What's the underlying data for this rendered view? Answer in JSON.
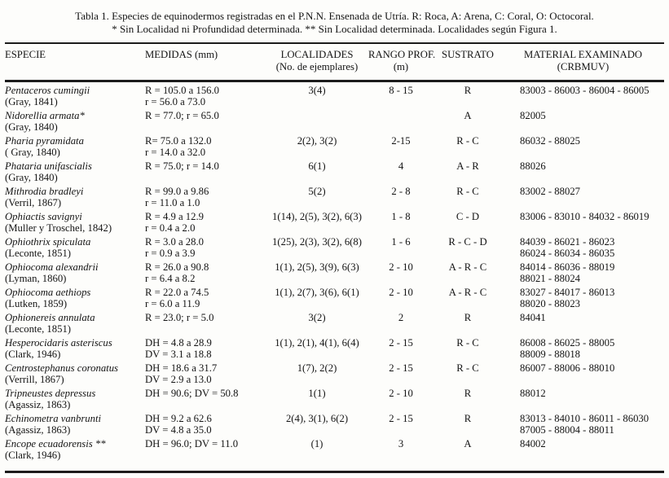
{
  "colors": {
    "paper": "#fdfdfb",
    "ink": "#141414",
    "rule": "#1c1c1c"
  },
  "caption": {
    "line1": "Tabla 1.  Especies de equinodermos registradas en el P.N.N.  Ensenada de Utría.  R:  Roca, A: Arena, C: Coral, O: Octocoral.",
    "line2": "* Sin Localidad ni Profundidad determinada.  ** Sin Localidad determinada.  Localidades según Figura 1."
  },
  "table": {
    "columns": [
      {
        "key": "especie",
        "line1": "ESPECIE",
        "line2": ""
      },
      {
        "key": "medidas",
        "line1": "MEDIDAS (mm)",
        "line2": ""
      },
      {
        "key": "localidades",
        "line1": "LOCALIDADES",
        "line2": "(No. de ejemplares)"
      },
      {
        "key": "rango",
        "line1": "RANGO PROF.",
        "line2": "(m)"
      },
      {
        "key": "sustrato",
        "line1": "SUSTRATO",
        "line2": ""
      },
      {
        "key": "material",
        "line1": "MATERIAL EXAMINADO",
        "line2": "(CRBMUV)"
      }
    ],
    "rows": [
      {
        "species": "Pentaceros cumingii",
        "authority": "(Gray, 1841)",
        "medidas": [
          "R = 105.0 a 156.0",
          "r = 56.0 a 73.0"
        ],
        "localidades": "3(4)",
        "rango": "8 - 15",
        "sustrato": "R",
        "material": [
          "83003 - 86003 - 86004 - 86005"
        ]
      },
      {
        "species": "Nidorellia armata*",
        "authority": "(Gray, 1840)",
        "medidas": [
          "R = 77.0; r = 65.0"
        ],
        "localidades": "",
        "rango": "",
        "sustrato": "A",
        "material": [
          "82005"
        ]
      },
      {
        "species": "Pharia pyramidata",
        "authority": "( Gray, 1840)",
        "medidas": [
          "R= 75.0 a 132.0",
          "r = 14.0 a 32.0"
        ],
        "localidades": "2(2), 3(2)",
        "rango": "2-15",
        "sustrato": "R - C",
        "material": [
          "86032 - 88025"
        ]
      },
      {
        "species": "Phataria unifascialis",
        "authority": "(Gray, 1840)",
        "medidas": [
          "R = 75.0; r = 14.0"
        ],
        "localidades": "6(1)",
        "rango": "4",
        "sustrato": "A - R",
        "material": [
          "88026"
        ]
      },
      {
        "species": "Mithrodia bradleyi",
        "authority": "(Verril, 1867)",
        "medidas": [
          "R = 99.0  a 9.86",
          "r =  11.0  a 1.0"
        ],
        "localidades": "5(2)",
        "rango": "2 - 8",
        "sustrato": "R - C",
        "material": [
          "83002 - 88027"
        ]
      },
      {
        "species": "Ophiactis savignyi",
        "authority": "(Muller y Troschel, 1842)",
        "medidas": [
          "R = 4.9 a 12.9",
          "r =  0.4 a 2.0"
        ],
        "localidades": "1(14), 2(5), 3(2), 6(3)",
        "rango": "1 - 8",
        "sustrato": "C - D",
        "material": [
          "83006 - 83010 - 84032 - 86019"
        ]
      },
      {
        "species": "Ophiothrix spiculata",
        "authority": "(Leconte, 1851)",
        "medidas": [
          "R = 3.0 a 28.0",
          "r =  0.9 a 3.9"
        ],
        "localidades": "1(25), 2(3), 3(2), 6(8)",
        "rango": "1 - 6",
        "sustrato": "R - C - D",
        "material": [
          "84039 - 86021 - 86023",
          "86024 - 86034 - 86035"
        ]
      },
      {
        "species": "Ophiocoma alexandrii",
        "authority": "(Lyman, 1860)",
        "medidas": [
          "R = 26.0 a 90.8",
          "r =   6.4 a 8.2"
        ],
        "localidades": "1(1), 2(5), 3(9), 6(3)",
        "rango": "2 - 10",
        "sustrato": "A - R - C",
        "material": [
          "84014 - 86036 - 88019",
          "88021 - 88024"
        ]
      },
      {
        "species": "Ophiocoma aethiops",
        "authority": "(Lutken, 1859)",
        "medidas": [
          "R = 22.0 a 74.5",
          "r =   6.0 a 11.9"
        ],
        "localidades": "1(1), 2(7), 3(6), 6(1)",
        "rango": "2 - 10",
        "sustrato": "A - R - C",
        "material": [
          "83027 - 84017 - 86013",
          "88020 - 88023"
        ]
      },
      {
        "species": "Ophionereis annulata",
        "authority": "(Leconte, 1851)",
        "medidas": [
          "R = 23.0;  r = 5.0"
        ],
        "localidades": "3(2)",
        "rango": "2",
        "sustrato": "R",
        "material": [
          "84041"
        ]
      },
      {
        "species": "Hesperocidaris asteriscus",
        "authority": "(Clark, 1946)",
        "medidas": [
          "DH = 4.8 a 28.9",
          "DV = 3.1 a 18.8"
        ],
        "localidades": "1(1), 2(1), 4(1), 6(4)",
        "rango": "2 - 15",
        "sustrato": "R - C",
        "material": [
          "86008 - 86025 - 88005",
          "88009 - 88018"
        ]
      },
      {
        "species": "Centrostephanus coronatus",
        "authority": "(Verrill, 1867)",
        "medidas": [
          "DH = 18.6 a 31.7",
          "DV = 2.9 a 13.0"
        ],
        "localidades": "1(7), 2(2)",
        "rango": "2 - 15",
        "sustrato": "R - C",
        "material": [
          "86007 - 88006 - 88010"
        ]
      },
      {
        "species": "Tripneustes depressus",
        "authority": "(Agassiz, 1863)",
        "medidas": [
          "DH = 90.6; DV = 50.8"
        ],
        "localidades": "1(1)",
        "rango": "2 - 10",
        "sustrato": "R",
        "material": [
          "88012"
        ]
      },
      {
        "species": "Echinometra vanbrunti",
        "authority": "(Agassiz, 1863)",
        "medidas": [
          "DH = 9.2 a 62.6",
          "DV = 4.8 a 35.0"
        ],
        "localidades": "2(4), 3(1), 6(2)",
        "rango": "2 - 15",
        "sustrato": "R",
        "material": [
          "83013 - 84010 - 86011 - 86030",
          "87005 - 88004 - 88011"
        ]
      },
      {
        "species": "Encope ecuadorensis **",
        "authority": "(Clark, 1946)",
        "medidas": [
          "DH =  96.0; DV = 11.0"
        ],
        "localidades": "(1)",
        "rango": "3",
        "sustrato": "A",
        "material": [
          "84002"
        ]
      }
    ]
  }
}
